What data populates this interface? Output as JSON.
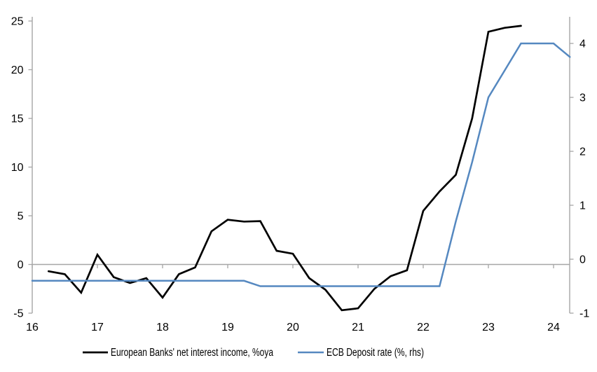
{
  "chart_data": {
    "type": "line",
    "title": "",
    "x_axis": {
      "tick_labels": [
        "16",
        "17",
        "18",
        "19",
        "20",
        "21",
        "22",
        "23",
        "24"
      ],
      "tick_values": [
        16,
        17,
        18,
        19,
        20,
        21,
        22,
        23,
        24
      ],
      "range": [
        16,
        24.25
      ]
    },
    "y_axis_left": {
      "tick_labels": [
        "25",
        "20",
        "15",
        "10",
        "5",
        "0",
        "-5"
      ],
      "tick_values": [
        25,
        20,
        15,
        10,
        5,
        0,
        -5
      ],
      "range": [
        -5,
        25
      ]
    },
    "y_axis_right": {
      "tick_labels": [
        "4",
        "3",
        "2",
        "1",
        "0",
        "-1"
      ],
      "tick_values": [
        4,
        3,
        2,
        1,
        0,
        -1
      ],
      "range": [
        -1,
        4.42
      ]
    },
    "grid": "zero-line-only",
    "legend_position": "bottom",
    "series": [
      {
        "name": "European Banks' net interest income, %oya",
        "axis": "left",
        "color": "#000000",
        "x": [
          16.25,
          16.5,
          16.75,
          17,
          17.25,
          17.5,
          17.75,
          18,
          18.25,
          18.5,
          18.75,
          19,
          19.25,
          19.5,
          19.75,
          20,
          20.25,
          20.5,
          20.75,
          21,
          21.25,
          21.5,
          21.75,
          22,
          22.25,
          22.5,
          22.75,
          23,
          23.25,
          23.5
        ],
        "values": [
          -0.7,
          -1.0,
          -2.9,
          1.0,
          -1.3,
          -1.9,
          -1.4,
          -3.4,
          -1.0,
          -0.3,
          3.4,
          4.6,
          4.4,
          4.45,
          1.4,
          1.1,
          -1.4,
          -2.6,
          -4.7,
          -4.5,
          -2.5,
          -1.2,
          -0.6,
          5.5,
          7.5,
          9.2,
          15.0,
          23.9,
          24.3,
          24.5
        ]
      },
      {
        "name": "ECB Deposit rate (%, rhs)",
        "axis": "right",
        "color": "#5588c0",
        "x": [
          16,
          16.25,
          16.5,
          16.75,
          17,
          17.25,
          17.5,
          17.75,
          18,
          18.25,
          18.5,
          18.75,
          19,
          19.25,
          19.5,
          19.75,
          20,
          20.25,
          20.5,
          20.75,
          21,
          21.25,
          21.5,
          21.75,
          22,
          22.25,
          22.5,
          22.75,
          23,
          23.25,
          23.5,
          23.75,
          24,
          24.25
        ],
        "values": [
          -0.4,
          -0.4,
          -0.4,
          -0.4,
          -0.4,
          -0.4,
          -0.4,
          -0.4,
          -0.4,
          -0.4,
          -0.4,
          -0.4,
          -0.4,
          -0.4,
          -0.5,
          -0.5,
          -0.5,
          -0.5,
          -0.5,
          -0.5,
          -0.5,
          -0.5,
          -0.5,
          -0.5,
          -0.5,
          -0.5,
          0.7,
          1.8,
          3.0,
          3.5,
          4.0,
          4.0,
          4.0,
          3.75
        ]
      }
    ]
  },
  "colors": {
    "axis_line": "#a6a6a6",
    "zero_line": "#a6a6a6",
    "text": "#000000",
    "background": "#ffffff",
    "series_nii": "#000000",
    "series_ecb": "#5588c0"
  }
}
